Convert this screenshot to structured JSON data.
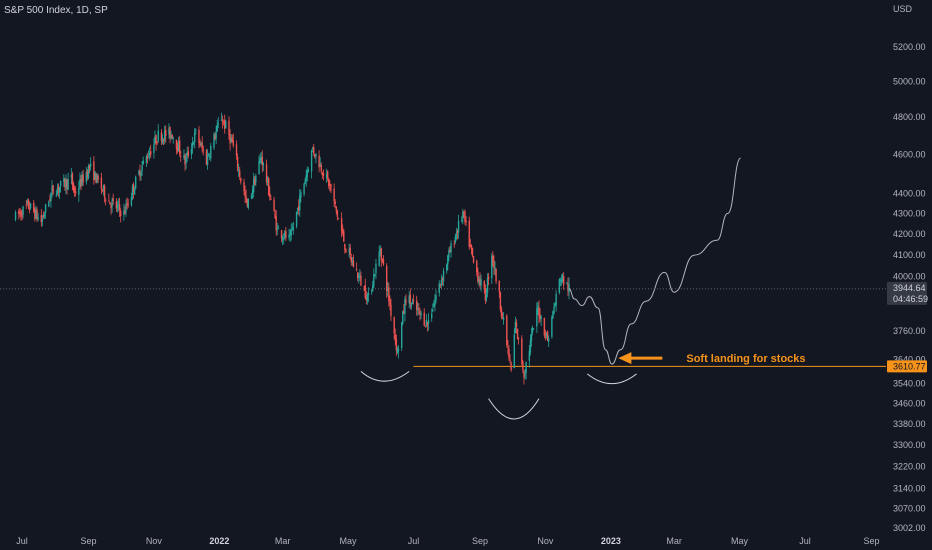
{
  "header": {
    "symbol_title": "S&P 500 Index, 1D, SP",
    "currency": "USD"
  },
  "colors": {
    "background": "#131722",
    "up": "#26a69a",
    "down": "#ef5350",
    "accent": "#f7931a",
    "projection": "#b2b5be",
    "last_price_tag": "#363a45"
  },
  "chart_data": {
    "type": "candlestick",
    "series_name": "S&P 500 Index",
    "timeframe": "1D",
    "x_ticks": [
      "Jul",
      "Sep",
      "Nov",
      "2022",
      "Mar",
      "May",
      "Jul",
      "Sep",
      "Nov",
      "2023",
      "Mar",
      "May",
      "Jul",
      "Sep"
    ],
    "x_ticks_bold": [
      "2022",
      "2023"
    ],
    "y_scale": "log",
    "y_ticks": [
      "5200.00",
      "5000.00",
      "4800.00",
      "4600.00",
      "4400.00",
      "4300.00",
      "4200.00",
      "4100.00",
      "4000.00",
      "3760.00",
      "3640.00",
      "3540.00",
      "3460.00",
      "3380.00",
      "3300.00",
      "3220.00",
      "3140.00",
      "3070.00",
      "3002.00"
    ],
    "ylim": [
      3002,
      5300
    ],
    "last_price": "3944.64",
    "countdown": "04:46:59",
    "support_level": "3610.77",
    "price_path": [
      {
        "d": "2021-06-25",
        "v": 4280
      },
      {
        "d": "2021-07-07",
        "v": 4340
      },
      {
        "d": "2021-07-19",
        "v": 4260
      },
      {
        "d": "2021-07-29",
        "v": 4410
      },
      {
        "d": "2021-08-16",
        "v": 4470
      },
      {
        "d": "2021-08-19",
        "v": 4400
      },
      {
        "d": "2021-09-02",
        "v": 4535
      },
      {
        "d": "2021-09-20",
        "v": 4360
      },
      {
        "d": "2021-10-04",
        "v": 4300
      },
      {
        "d": "2021-10-20",
        "v": 4530
      },
      {
        "d": "2021-11-05",
        "v": 4700
      },
      {
        "d": "2021-11-18",
        "v": 4710
      },
      {
        "d": "2021-11-30",
        "v": 4560
      },
      {
        "d": "2021-12-10",
        "v": 4710
      },
      {
        "d": "2021-12-20",
        "v": 4570
      },
      {
        "d": "2022-01-03",
        "v": 4800
      },
      {
        "d": "2022-01-13",
        "v": 4660
      },
      {
        "d": "2022-01-27",
        "v": 4330
      },
      {
        "d": "2022-02-09",
        "v": 4590
      },
      {
        "d": "2022-02-24",
        "v": 4220
      },
      {
        "d": "2022-03-08",
        "v": 4170
      },
      {
        "d": "2022-03-29",
        "v": 4630
      },
      {
        "d": "2022-04-13",
        "v": 4450
      },
      {
        "d": "2022-04-29",
        "v": 4130
      },
      {
        "d": "2022-05-20",
        "v": 3900
      },
      {
        "d": "2022-05-31",
        "v": 4130
      },
      {
        "d": "2022-06-16",
        "v": 3670
      },
      {
        "d": "2022-06-24",
        "v": 3910
      },
      {
        "d": "2022-07-14",
        "v": 3790
      },
      {
        "d": "2022-08-16",
        "v": 4300
      },
      {
        "d": "2022-08-26",
        "v": 4060
      },
      {
        "d": "2022-09-06",
        "v": 3910
      },
      {
        "d": "2022-09-12",
        "v": 4110
      },
      {
        "d": "2022-09-30",
        "v": 3590
      },
      {
        "d": "2022-10-04",
        "v": 3790
      },
      {
        "d": "2022-10-12",
        "v": 3580
      },
      {
        "d": "2022-10-25",
        "v": 3860
      },
      {
        "d": "2022-11-03",
        "v": 3720
      },
      {
        "d": "2022-11-15",
        "v": 4000
      },
      {
        "d": "2022-11-23",
        "v": 3945
      }
    ],
    "projection_path": [
      {
        "d": "2022-11-23",
        "v": 3945
      },
      {
        "d": "2022-11-28",
        "v": 3900
      },
      {
        "d": "2022-12-05",
        "v": 3870
      },
      {
        "d": "2022-12-12",
        "v": 3910
      },
      {
        "d": "2022-12-20",
        "v": 3860
      },
      {
        "d": "2022-12-27",
        "v": 3680
      },
      {
        "d": "2023-01-02",
        "v": 3620
      },
      {
        "d": "2023-01-10",
        "v": 3680
      },
      {
        "d": "2023-01-20",
        "v": 3790
      },
      {
        "d": "2023-02-03",
        "v": 3890
      },
      {
        "d": "2023-02-20",
        "v": 4020
      },
      {
        "d": "2023-03-01",
        "v": 3930
      },
      {
        "d": "2023-03-20",
        "v": 4100
      },
      {
        "d": "2023-04-10",
        "v": 4170
      },
      {
        "d": "2023-04-20",
        "v": 4300
      },
      {
        "d": "2023-05-02",
        "v": 4580
      }
    ],
    "arcs": [
      {
        "start": "2022-05-13",
        "mid": "2022-06-03",
        "end": "2022-06-27",
        "edge_price": 3590,
        "bottom_price": 3550
      },
      {
        "start": "2022-09-09",
        "mid": "2022-10-03",
        "end": "2022-10-26",
        "edge_price": 3480,
        "bottom_price": 3400
      },
      {
        "start": "2022-12-10",
        "mid": "2023-01-02",
        "end": "2023-01-25",
        "edge_price": 3580,
        "bottom_price": 3540
      }
    ],
    "support_line_from": "2022-07-01",
    "annotation": {
      "text": "Soft landing for stocks",
      "arrow_tip": "2023-01-08",
      "price": 3645
    }
  }
}
